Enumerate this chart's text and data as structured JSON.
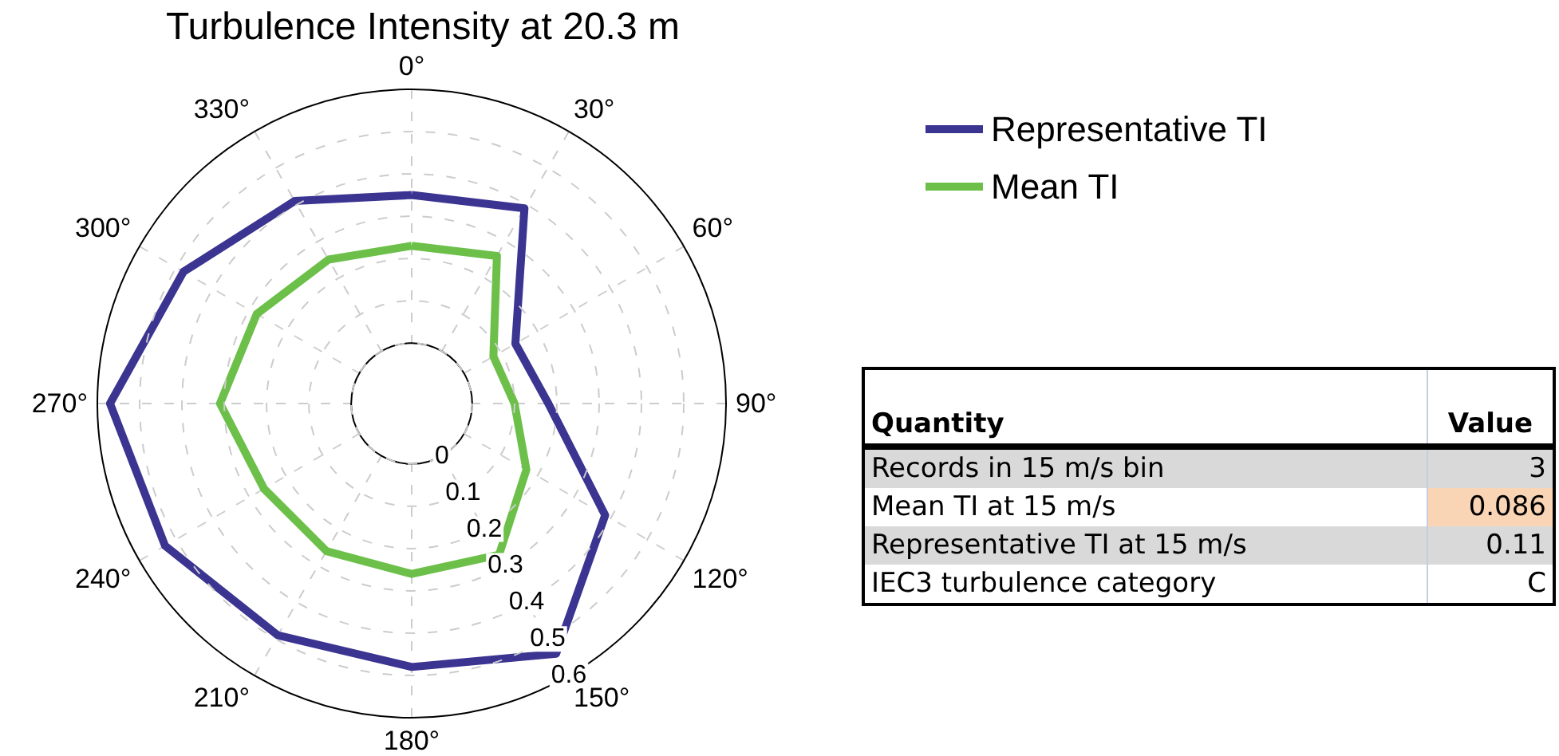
{
  "chart_data": [
    {
      "type": "radar",
      "title": "Turbulence Intensity at 20.3 m",
      "categories": [
        "0°",
        "30°",
        "60°",
        "90°",
        "120°",
        "150°",
        "180°",
        "210°",
        "240°",
        "270°",
        "300°",
        "330°"
      ],
      "series": [
        {
          "name": "Representative TI",
          "color": "#3b3491",
          "values": [
            0.35,
            0.39,
            0.14,
            0.18,
            0.385,
            0.54,
            0.48,
            0.49,
            0.53,
            0.57,
            0.48,
            0.41
          ]
        },
        {
          "name": "Mean TI",
          "color": "#6cc04a",
          "values": [
            0.23,
            0.26,
            0.08,
            0.1,
            0.17,
            0.27,
            0.26,
            0.26,
            0.26,
            0.31,
            0.28,
            0.25
          ]
        }
      ],
      "ylim": [
        -0.143,
        0.6
      ],
      "yticks": [
        0,
        0.1,
        0.2,
        0.3,
        0.4,
        0.5,
        0.6
      ],
      "grid": true,
      "legend": "top right",
      "marker": "none",
      "line_style": "solid"
    },
    {
      "type": "other",
      "annotations": [
        "Quantity",
        "Value",
        "Records in 15 m/s bin",
        "3",
        "Mean TI at 15 m/s",
        "0.086",
        "Representative TI at 15 m/s",
        "0.11",
        "IEC3 turbulence category",
        "C"
      ]
    }
  ]
}
